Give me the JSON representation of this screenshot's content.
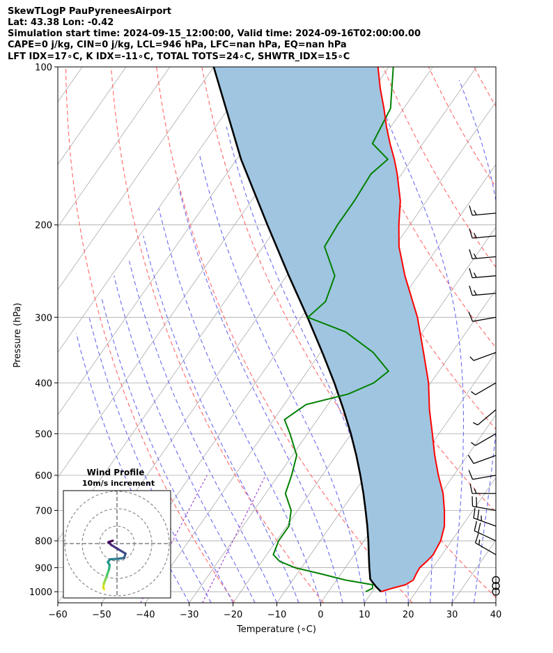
{
  "header": {
    "line1": "SkewTLogP PauPyreneesAirport",
    "line2": "Lat: 43.38   Lon: -0.42",
    "line3": "Simulation start time: 2024-09-15_12:00:00, Valid time: 2024-09-16T02:00:00.00",
    "line4": "CAPE=0 j/kg, CIN=0 j/kg, LCL=946 hPa, LFC=nan hPa, EQ=nan hPa",
    "line5": "LFT IDX=17∘C, K IDX=-11∘C, TOTAL TOTS=24∘C, SHWTR_IDX=15∘C"
  },
  "chart_data": {
    "type": "line",
    "subtype": "skew-T log-P",
    "xlabel": "Temperature (∘C)",
    "ylabel": "Pressure (hPa)",
    "xlim": [
      -60,
      40
    ],
    "ylim": [
      1050,
      100
    ],
    "x_ticks": [
      -60,
      -50,
      -40,
      -30,
      -20,
      -10,
      0,
      10,
      20,
      30,
      40
    ],
    "x_tick_labels": [
      "−60",
      "−50",
      "−40",
      "−30",
      "−20",
      "−10",
      "0",
      "10",
      "20",
      "30",
      "40"
    ],
    "y_ticks": [
      1000,
      900,
      800,
      700,
      600,
      500,
      400,
      300,
      200,
      100
    ],
    "y_tick_labels": [
      "1000",
      "900",
      "800",
      "700",
      "600",
      "500",
      "400",
      "300",
      "200",
      "100"
    ],
    "colors": {
      "temperature": "#ff0000",
      "dewpoint": "#008000",
      "parcel": "#000000",
      "cape_fill": "#a0c5e0",
      "dry_adiabat": "#ff6666",
      "moist_adiabat": "#6a6af0",
      "isotherm": "#aaaaaa",
      "mixing_ratio": "#9933cc"
    },
    "series": [
      {
        "name": "Temperature",
        "pressure": [
          1000,
          985,
          970,
          950,
          925,
          900,
          875,
          850,
          800,
          750,
          700,
          650,
          600,
          550,
          500,
          450,
          400,
          350,
          300,
          250,
          220,
          200,
          180,
          160,
          150,
          140,
          130,
          120,
          110,
          100
        ],
        "values": [
          12.0,
          14.0,
          16.5,
          17.5,
          17.2,
          17.0,
          17.6,
          18.0,
          17.5,
          16.0,
          13.5,
          10.5,
          6.5,
          2.5,
          -1.5,
          -6.0,
          -10.5,
          -16.5,
          -23.5,
          -33.0,
          -39.0,
          -42.5,
          -46.0,
          -51.0,
          -54.0,
          -57.5,
          -61.0,
          -64.5,
          -68.5,
          -72.5
        ]
      },
      {
        "name": "Dewpoint",
        "pressure": [
          1000,
          985,
          970,
          950,
          925,
          900,
          875,
          850,
          800,
          750,
          700,
          650,
          600,
          550,
          500,
          470,
          440,
          420,
          400,
          380,
          350,
          320,
          300,
          280,
          250,
          220,
          200,
          180,
          160,
          150,
          140,
          120,
          100
        ],
        "values": [
          8.5,
          9.5,
          9.0,
          2.0,
          -4.5,
          -11.5,
          -16.0,
          -18.5,
          -19.5,
          -19.5,
          -21.5,
          -25.5,
          -27.0,
          -29.0,
          -34.0,
          -37.5,
          -35.0,
          -27.0,
          -23.0,
          -21.5,
          -28.0,
          -37.5,
          -48.5,
          -47.0,
          -49.0,
          -56.0,
          -56.5,
          -56.5,
          -57.0,
          -55.5,
          -61.5,
          -63.0,
          -69.0
        ]
      },
      {
        "name": "Parcel",
        "pressure": [
          1000,
          980,
          960,
          946,
          920,
          900,
          850,
          800,
          750,
          700,
          650,
          600,
          550,
          500,
          450,
          400,
          350,
          300,
          250,
          200,
          150,
          100
        ],
        "values": [
          12.0,
          10.2,
          8.6,
          7.5,
          6.4,
          5.5,
          3.3,
          1.0,
          -1.6,
          -4.5,
          -7.7,
          -11.3,
          -15.4,
          -20.1,
          -25.6,
          -32.0,
          -39.6,
          -48.6,
          -59.5,
          -72.5,
          -89.0,
          -110.0
        ]
      }
    ],
    "shading": "CAPE/CIN region between parcel and temperature profile",
    "wind_barbs": {
      "pressure": [
        1000,
        975,
        950,
        850,
        800,
        750,
        700,
        650,
        600,
        550,
        500,
        450,
        400,
        350,
        300,
        270,
        250,
        230,
        210,
        190
      ],
      "speed_kt": [
        0,
        0,
        0,
        15,
        20,
        25,
        20,
        15,
        10,
        10,
        5,
        5,
        5,
        5,
        10,
        15,
        15,
        15,
        15,
        15
      ],
      "direction_deg": [
        0,
        0,
        0,
        300,
        295,
        290,
        280,
        270,
        260,
        250,
        240,
        230,
        240,
        250,
        260,
        265,
        265,
        265,
        265,
        265
      ]
    },
    "inset": {
      "title": "Wind Profile",
      "subtitle": "10m/s increment",
      "type": "hodograph",
      "u": [
        -4.5,
        -4.8,
        -4.6,
        -4.0,
        -3.5,
        -2.8,
        -2.6,
        -3.2,
        -2.5,
        0.5,
        2.5,
        3.0,
        0.5,
        -2.0,
        -3.0,
        -1.5
      ],
      "v": [
        -16.0,
        -15.5,
        -14.0,
        -12.5,
        -11.0,
        -9.0,
        -7.5,
        -6.5,
        -5.5,
        -5.3,
        -5.0,
        -3.5,
        -2.0,
        -0.5,
        0.5,
        1.0
      ]
    }
  }
}
